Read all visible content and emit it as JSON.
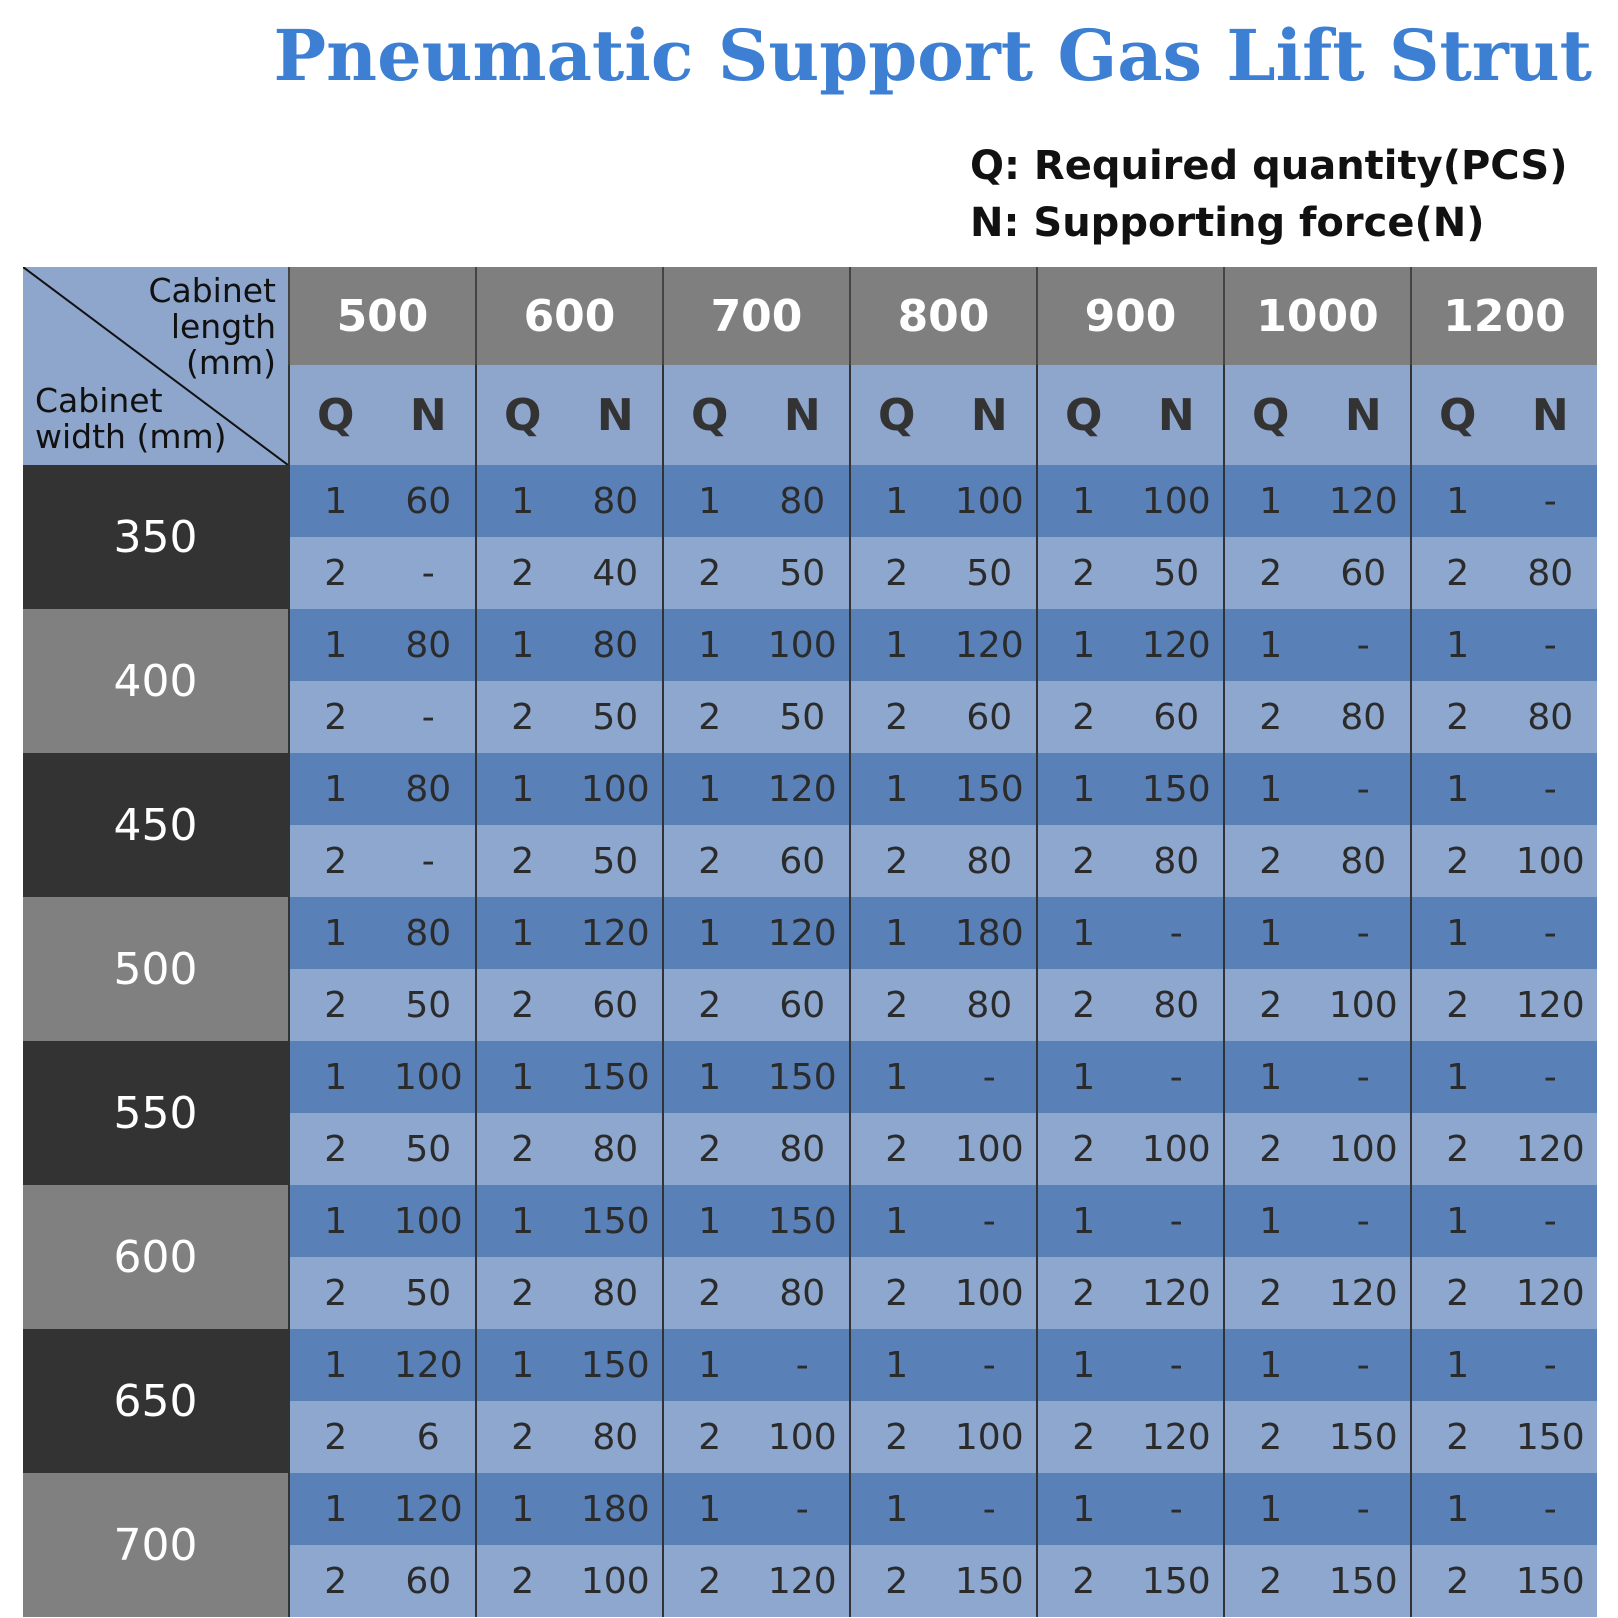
{
  "header": {
    "title": "Pneumatic Support Gas Lift Strut",
    "legend": [
      "Q: Required quantity(PCS)",
      "N: Supporting force(N)"
    ]
  },
  "table": {
    "corner": {
      "length_label": "Cabinet length (mm)",
      "width_label": "Cabinet width (mm)"
    },
    "lengths": [
      500,
      600,
      700,
      800,
      900,
      1000,
      1200
    ],
    "sub_headers": [
      "Q",
      "N"
    ],
    "rows": [
      {
        "width": 350,
        "lines": [
          [
            1,
            60,
            1,
            80,
            1,
            80,
            1,
            100,
            1,
            100,
            1,
            120,
            1,
            "-"
          ],
          [
            2,
            "-",
            2,
            40,
            2,
            50,
            2,
            50,
            2,
            50,
            2,
            60,
            2,
            80
          ]
        ]
      },
      {
        "width": 400,
        "lines": [
          [
            1,
            80,
            1,
            80,
            1,
            100,
            1,
            120,
            1,
            120,
            1,
            "-",
            1,
            "-"
          ],
          [
            2,
            "-",
            2,
            50,
            2,
            50,
            2,
            60,
            2,
            60,
            2,
            80,
            2,
            80
          ]
        ]
      },
      {
        "width": 450,
        "lines": [
          [
            1,
            80,
            1,
            100,
            1,
            120,
            1,
            150,
            1,
            150,
            1,
            "-",
            1,
            "-"
          ],
          [
            2,
            "-",
            2,
            50,
            2,
            60,
            2,
            80,
            2,
            80,
            2,
            80,
            2,
            100
          ]
        ]
      },
      {
        "width": 500,
        "lines": [
          [
            1,
            80,
            1,
            120,
            1,
            120,
            1,
            180,
            1,
            "-",
            1,
            "-",
            1,
            "-"
          ],
          [
            2,
            50,
            2,
            60,
            2,
            60,
            2,
            80,
            2,
            80,
            2,
            100,
            2,
            120
          ]
        ]
      },
      {
        "width": 550,
        "lines": [
          [
            1,
            100,
            1,
            150,
            1,
            150,
            1,
            "-",
            1,
            "-",
            1,
            "-",
            1,
            "-"
          ],
          [
            2,
            50,
            2,
            80,
            2,
            80,
            2,
            100,
            2,
            100,
            2,
            100,
            2,
            120
          ]
        ]
      },
      {
        "width": 600,
        "lines": [
          [
            1,
            100,
            1,
            150,
            1,
            150,
            1,
            "-",
            1,
            "-",
            1,
            "-",
            1,
            "-"
          ],
          [
            2,
            50,
            2,
            80,
            2,
            80,
            2,
            100,
            2,
            120,
            2,
            120,
            2,
            120
          ]
        ]
      },
      {
        "width": 650,
        "lines": [
          [
            1,
            120,
            1,
            150,
            1,
            "-",
            1,
            "-",
            1,
            "-",
            1,
            "-",
            1,
            "-"
          ],
          [
            2,
            6,
            2,
            80,
            2,
            100,
            2,
            100,
            2,
            120,
            2,
            150,
            2,
            150
          ]
        ]
      },
      {
        "width": 700,
        "lines": [
          [
            1,
            120,
            1,
            180,
            1,
            "-",
            1,
            "-",
            1,
            "-",
            1,
            "-",
            1,
            "-"
          ],
          [
            2,
            60,
            2,
            100,
            2,
            120,
            2,
            150,
            2,
            150,
            2,
            150,
            2,
            150
          ]
        ]
      }
    ]
  }
}
